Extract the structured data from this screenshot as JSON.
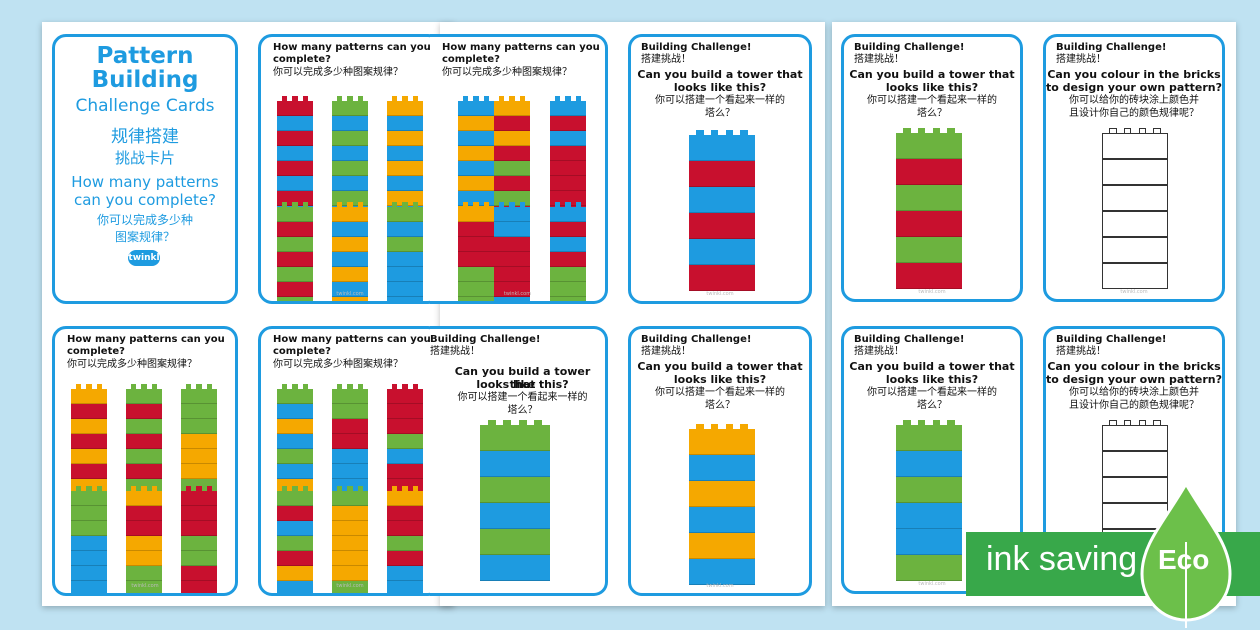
{
  "cover": {
    "title_line1": "Pattern",
    "title_line2": "Building",
    "subtitle": "Challenge Cards",
    "subtitle_zh1": "规律搭建",
    "subtitle_zh2": "挑战卡片",
    "question_line1": "How many patterns",
    "question_line2": "can you complete?",
    "question_zh1": "你可以完成多少种",
    "question_zh2": "图案规律？",
    "logo": "twinkl"
  },
  "pattern_card": {
    "q1": "How many patterns can you",
    "q2": "complete?",
    "zh": "你可以完成多少种图案规律？"
  },
  "tower_card": {
    "title": "Building Challenge!",
    "title_zh": "搭建挑战！",
    "q1": "Can you build a tower that",
    "q2": "looks like this?",
    "zh1": "你可以搭建一个看起来一样的",
    "zh2": "塔么？"
  },
  "design_card": {
    "title": "Building Challenge!",
    "title_zh": "搭建挑战！",
    "q1": "Can you colour in the bricks",
    "q2": "to design your own pattern?",
    "zh1": "你可以给你的砖块涂上颜色并",
    "zh2": "且设计你自己的颜色规律呢？"
  },
  "footer": "twinkl.com",
  "banner": {
    "text": "ink saving",
    "badge": "Eco"
  },
  "colors": {
    "red": "#c8102e",
    "blue": "#1e9be0",
    "green": "#6cb33f",
    "orange": "#f5a800",
    "border": "#1e9be0"
  }
}
